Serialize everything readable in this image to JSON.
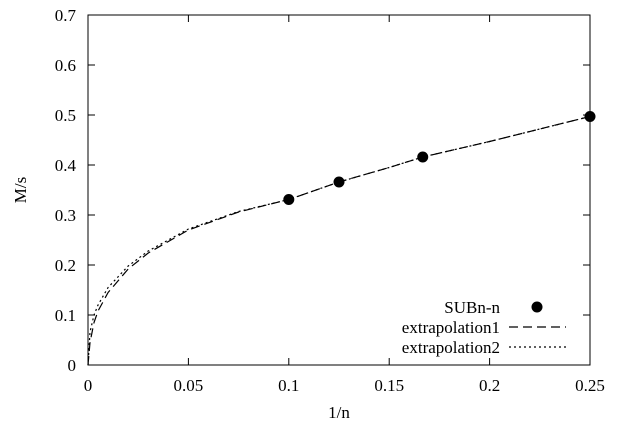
{
  "chart_data": {
    "type": "line",
    "xlabel": "1/n",
    "ylabel": "M/s",
    "xlim": [
      0,
      0.25
    ],
    "ylim": [
      0,
      0.7
    ],
    "xticks": [
      "0",
      "0.05",
      "0.1",
      "0.15",
      "0.2",
      "0.25"
    ],
    "yticks": [
      "0",
      "0.1",
      "0.2",
      "0.3",
      "0.4",
      "0.5",
      "0.6",
      "0.7"
    ],
    "grid": false,
    "legend_position": "bottom-right",
    "series": [
      {
        "name": "SUBn-n",
        "style": "points",
        "color": "#000000",
        "x": [
          0.1,
          0.125,
          0.1667,
          0.25
        ],
        "y": [
          0.331,
          0.366,
          0.416,
          0.497
        ]
      },
      {
        "name": "extrapolation1",
        "style": "dashed",
        "color": "#000000",
        "x": [
          0,
          0.001,
          0.003,
          0.005,
          0.01,
          0.02,
          0.03,
          0.05,
          0.075,
          0.1,
          0.125,
          0.15,
          0.1667,
          0.2,
          0.25
        ],
        "y": [
          0,
          0.045,
          0.085,
          0.108,
          0.145,
          0.192,
          0.224,
          0.27,
          0.306,
          0.331,
          0.366,
          0.395,
          0.416,
          0.447,
          0.497
        ]
      },
      {
        "name": "extrapolation2",
        "style": "dotted",
        "color": "#000000",
        "x": [
          0,
          0.001,
          0.003,
          0.005,
          0.01,
          0.02,
          0.03,
          0.05,
          0.075,
          0.1,
          0.125,
          0.15,
          0.1667,
          0.2,
          0.25
        ],
        "y": [
          0,
          0.066,
          0.1,
          0.12,
          0.155,
          0.198,
          0.228,
          0.272,
          0.307,
          0.331,
          0.366,
          0.395,
          0.416,
          0.447,
          0.497
        ]
      }
    ]
  }
}
